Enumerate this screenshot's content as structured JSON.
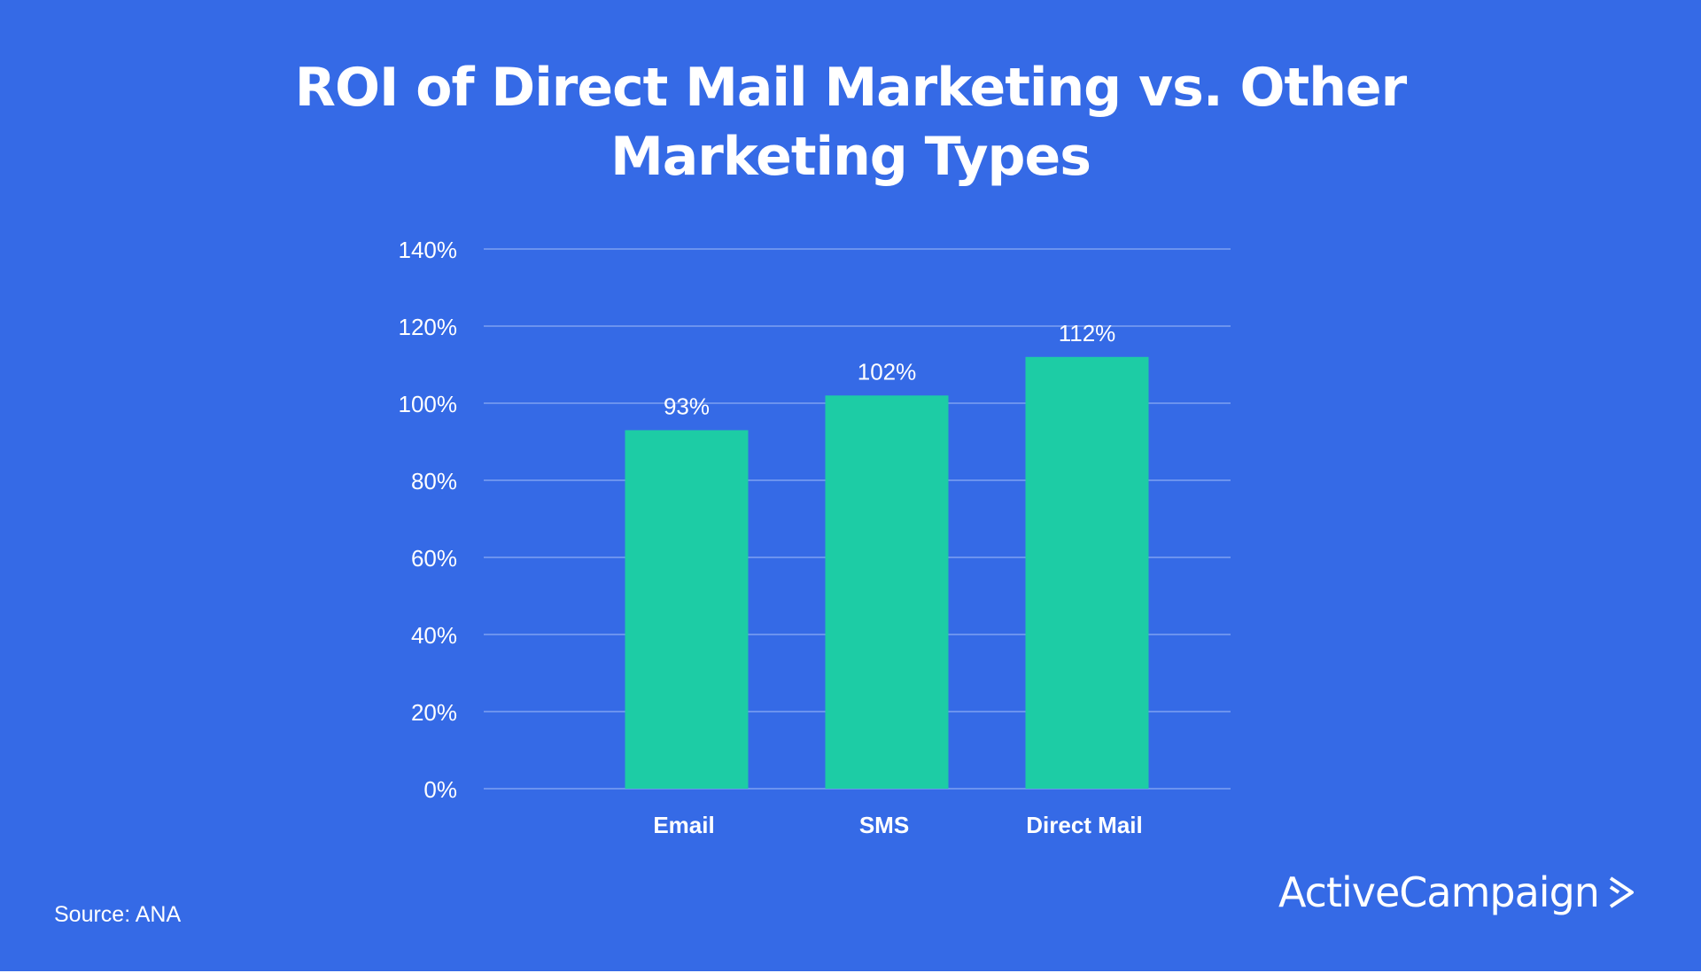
{
  "colors": {
    "background": "#356ae6",
    "bar": "#1dcca5",
    "grid": "#6b93ef",
    "text": "#ffffff"
  },
  "chart_data": {
    "type": "bar",
    "title": "ROI of Direct Mail Marketing vs. Other Marketing Types",
    "title_lines": [
      "ROI of Direct Mail Marketing vs. Other",
      "Marketing Types"
    ],
    "categories": [
      "Email",
      "SMS",
      "Direct Mail"
    ],
    "values": [
      93,
      102,
      112
    ],
    "data_labels": [
      "93%",
      "102%",
      "112%"
    ],
    "xlabel": "",
    "ylabel": "",
    "ylim": [
      0,
      140
    ],
    "yticks": [
      0,
      20,
      40,
      60,
      80,
      100,
      120,
      140
    ],
    "ytick_labels": [
      "0%",
      "20%",
      "40%",
      "60%",
      "80%",
      "100%",
      "120%",
      "140%"
    ],
    "grid": true,
    "legend": "none"
  },
  "footer": {
    "source": "Source: ANA",
    "logo_text": "ActiveCampaign",
    "logo_icon": "chevron-right-icon"
  }
}
